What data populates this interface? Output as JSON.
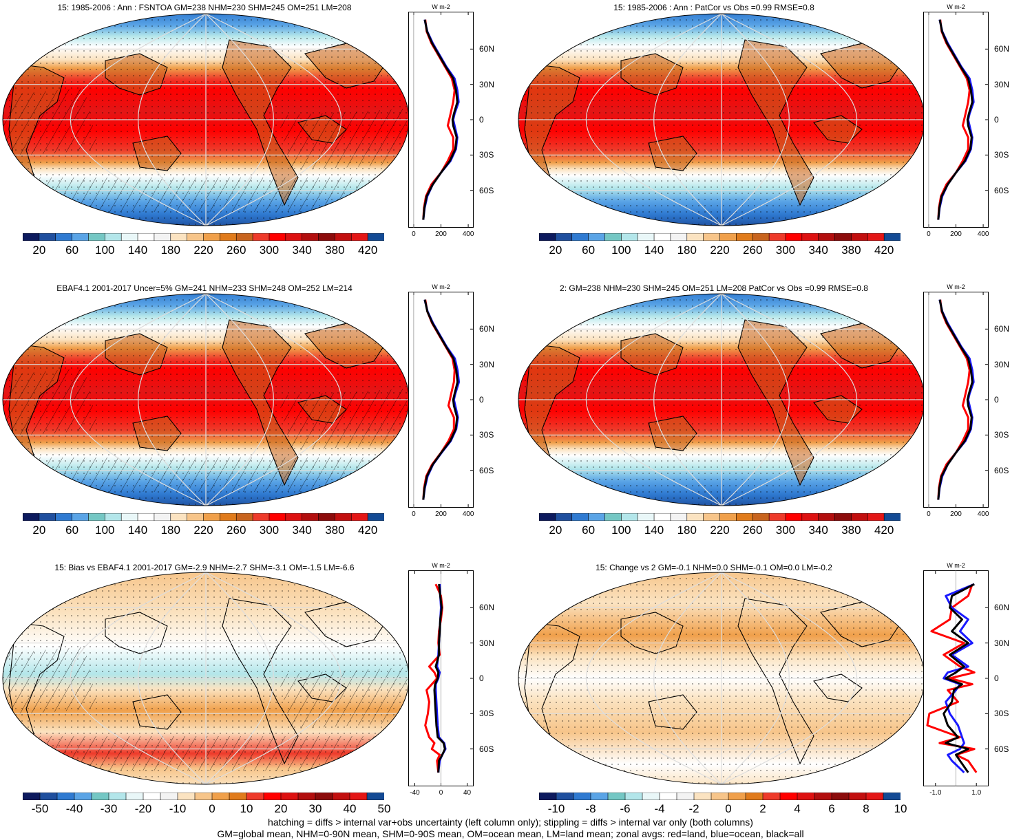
{
  "palettes": {
    "flux": [
      "#0d1a5e",
      "#1f4f9e",
      "#2f7ad1",
      "#5aa4e6",
      "#74c7c4",
      "#b3e6ea",
      "#e9f7f8",
      "#ffffff",
      "#f3f3f3",
      "#fbe3c1",
      "#f7c58a",
      "#f0a04b",
      "#e07b1c",
      "#c8641e",
      "#ee3a2a",
      "#ff0000",
      "#dd1111",
      "#b20e0e",
      "#8c0b0b",
      "#c20f0f",
      "#e31616",
      "#134a94"
    ],
    "diff": [
      "#0d1a5e",
      "#1f4f9e",
      "#2f7ad1",
      "#5aa4e6",
      "#74c7c4",
      "#b3e6ea",
      "#e9f7f8",
      "#ffffff",
      "#f3f3f3",
      "#fbe3c1",
      "#f7c58a",
      "#f0a04b",
      "#e07b1c",
      "#ee3a2a",
      "#ff0000",
      "#dd1111",
      "#b20e0e",
      "#8c0b0b",
      "#c20f0f",
      "#e31616",
      "#134a94"
    ]
  },
  "panels": [
    {
      "title": "15: 1985-2006 : Ann : FSNTOA GM=238 NHM=230 SHM=245 OM=251 LM=208",
      "map_kind": "flux",
      "hatch": true,
      "colorbar": {
        "palette": "flux",
        "labels": [
          "20",
          "60",
          "100",
          "140",
          "180",
          "220",
          "260",
          "300",
          "340",
          "380",
          "420"
        ]
      },
      "zonal": {
        "unit": "W m-2",
        "ylabels": [
          "60N",
          "30N",
          "0",
          "30S",
          "60S"
        ],
        "xticks": [
          "0",
          "200",
          "400"
        ],
        "xlim": [
          -40,
          440
        ],
        "lat": [
          85,
          75,
          65,
          55,
          45,
          35,
          25,
          15,
          5,
          0,
          -5,
          -15,
          -25,
          -35,
          -45,
          -55,
          -65,
          -75,
          -85
        ],
        "land": [
          85,
          95,
          130,
          180,
          230,
          280,
          300,
          290,
          270,
          260,
          250,
          290,
          290,
          250,
          200,
          130,
          90,
          75,
          70
        ],
        "ocean": [
          80,
          100,
          140,
          190,
          240,
          300,
          320,
          330,
          300,
          290,
          300,
          320,
          310,
          270,
          200,
          140,
          100,
          80,
          70
        ],
        "all": [
          82,
          98,
          135,
          185,
          235,
          290,
          310,
          320,
          295,
          285,
          290,
          315,
          305,
          265,
          200,
          140,
          95,
          78,
          70
        ]
      }
    },
    {
      "title": "15: 1985-2006 : Ann : PatCor vs Obs =0.99 RMSE=0.8",
      "map_kind": "flux",
      "hatch": false,
      "colorbar": {
        "palette": "flux",
        "labels": [
          "20",
          "60",
          "100",
          "140",
          "180",
          "220",
          "260",
          "300",
          "340",
          "380",
          "420"
        ]
      },
      "zonal": {
        "unit": "W m-2",
        "ylabels": [
          "60N",
          "30N",
          "0",
          "30S",
          "60S"
        ],
        "xticks": [
          "0",
          "200",
          "400"
        ],
        "xlim": [
          -40,
          440
        ],
        "lat": [
          85,
          75,
          65,
          55,
          45,
          35,
          25,
          15,
          5,
          0,
          -5,
          -15,
          -25,
          -35,
          -45,
          -55,
          -65,
          -75,
          -85
        ],
        "land": [
          85,
          95,
          130,
          180,
          230,
          280,
          300,
          290,
          270,
          260,
          250,
          290,
          290,
          250,
          200,
          130,
          90,
          75,
          70
        ],
        "ocean": [
          80,
          100,
          140,
          190,
          240,
          300,
          320,
          330,
          300,
          290,
          300,
          320,
          310,
          270,
          200,
          140,
          100,
          80,
          70
        ],
        "all": [
          82,
          98,
          135,
          185,
          235,
          290,
          310,
          320,
          295,
          285,
          290,
          315,
          305,
          265,
          200,
          140,
          95,
          78,
          70
        ]
      }
    },
    {
      "title": "EBAF4.1 2001-2017 Uncer=5% GM=241 NHM=233 SHM=248 OM=252 LM=214",
      "map_kind": "flux",
      "hatch": true,
      "colorbar": {
        "palette": "flux",
        "labels": [
          "20",
          "60",
          "100",
          "140",
          "180",
          "220",
          "260",
          "300",
          "340",
          "380",
          "420"
        ]
      },
      "zonal": {
        "unit": "W m-2",
        "ylabels": [
          "60N",
          "30N",
          "0",
          "30S",
          "60S"
        ],
        "xticks": [
          "0",
          "200",
          "400"
        ],
        "xlim": [
          -40,
          440
        ],
        "lat": [
          85,
          75,
          65,
          55,
          45,
          35,
          25,
          15,
          5,
          0,
          -5,
          -15,
          -25,
          -35,
          -45,
          -55,
          -65,
          -75,
          -85
        ],
        "land": [
          85,
          100,
          135,
          185,
          235,
          285,
          300,
          295,
          275,
          265,
          255,
          295,
          295,
          255,
          200,
          135,
          92,
          76,
          70
        ],
        "ocean": [
          80,
          102,
          142,
          192,
          242,
          302,
          322,
          332,
          305,
          295,
          305,
          325,
          312,
          272,
          205,
          142,
          102,
          82,
          70
        ],
        "all": [
          82,
          100,
          138,
          188,
          238,
          292,
          312,
          322,
          300,
          290,
          295,
          318,
          308,
          268,
          202,
          140,
          97,
          79,
          70
        ]
      }
    },
    {
      "title": "2: GM=238 NHM=230 SHM=245 OM=251 LM=208 PatCor vs Obs =0.99 RMSE=0.8",
      "map_kind": "flux",
      "hatch": false,
      "colorbar": {
        "palette": "flux",
        "labels": [
          "20",
          "60",
          "100",
          "140",
          "180",
          "220",
          "260",
          "300",
          "340",
          "380",
          "420"
        ]
      },
      "zonal": {
        "unit": "W m-2",
        "ylabels": [
          "60N",
          "30N",
          "0",
          "30S",
          "60S"
        ],
        "xticks": [
          "0",
          "200",
          "400"
        ],
        "xlim": [
          -40,
          440
        ],
        "lat": [
          85,
          75,
          65,
          55,
          45,
          35,
          25,
          15,
          5,
          0,
          -5,
          -15,
          -25,
          -35,
          -45,
          -55,
          -65,
          -75,
          -85
        ],
        "land": [
          85,
          95,
          130,
          180,
          230,
          280,
          300,
          290,
          270,
          260,
          250,
          290,
          290,
          250,
          200,
          130,
          90,
          75,
          70
        ],
        "ocean": [
          80,
          100,
          140,
          190,
          240,
          300,
          320,
          330,
          300,
          290,
          300,
          320,
          310,
          270,
          200,
          140,
          100,
          80,
          70
        ],
        "all": [
          82,
          98,
          135,
          185,
          235,
          290,
          310,
          320,
          295,
          285,
          290,
          315,
          305,
          265,
          200,
          140,
          95,
          78,
          70
        ]
      }
    },
    {
      "title": "15: Bias vs EBAF4.1 2001-2017 GM=-2.9 NHM=-2.7 SHM=-3.1 OM=-1.5 LM=-6.6",
      "map_kind": "bias",
      "hatch": true,
      "colorbar": {
        "palette": "diff",
        "labels": [
          "-50",
          "-40",
          "-30",
          "-20",
          "-10",
          "0",
          "10",
          "20",
          "30",
          "40",
          "50"
        ]
      },
      "zonal": {
        "unit": "W m-2",
        "ylabels": [
          "60N",
          "30N",
          "0",
          "30S",
          "60S"
        ],
        "xticks": [
          "-40",
          "0",
          "40"
        ],
        "xlim": [
          -50,
          50
        ],
        "lat": [
          80,
          70,
          60,
          50,
          40,
          30,
          20,
          10,
          5,
          0,
          -5,
          -10,
          -20,
          -30,
          -40,
          -50,
          -55,
          -60,
          -65,
          -70,
          -80
        ],
        "land": [
          -8,
          0,
          2,
          0,
          -3,
          -4,
          -2,
          -18,
          -10,
          -6,
          -14,
          -22,
          -18,
          -20,
          -24,
          -18,
          -10,
          -14,
          -2,
          -6,
          -4
        ],
        "ocean": [
          -2,
          -1,
          0,
          -1,
          -2,
          -3,
          -4,
          -6,
          -2,
          -4,
          -8,
          -8,
          -7,
          -6,
          -5,
          -3,
          5,
          7,
          2,
          -2,
          -4
        ],
        "all": [
          -3,
          -1,
          1,
          -1,
          -2,
          -3,
          -3,
          -8,
          -4,
          -5,
          -9,
          -10,
          -9,
          -8,
          -7,
          -5,
          4,
          6,
          2,
          -3,
          -4
        ]
      }
    },
    {
      "title": "15: Change vs 2 GM=-0.1 NHM=0.0 SHM=-0.1 OM=0.0 LM=-0.2",
      "map_kind": "change",
      "hatch": false,
      "colorbar": {
        "palette": "diff",
        "labels": [
          "-10",
          "-8",
          "-6",
          "-4",
          "-2",
          "0",
          "2",
          "4",
          "6",
          "8",
          "10"
        ]
      },
      "zonal": {
        "unit": "W m-2",
        "ylabels": [
          "60N",
          "30N",
          "0",
          "30S",
          "60S"
        ],
        "xticks": [
          "-1.0",
          "1.0"
        ],
        "xlim": [
          -1.6,
          1.6
        ],
        "lat": [
          80,
          70,
          60,
          50,
          40,
          30,
          20,
          10,
          5,
          0,
          -5,
          -10,
          -20,
          -30,
          -40,
          -50,
          -55,
          -60,
          -65,
          -70,
          -80
        ],
        "land": [
          0.8,
          0.6,
          -0.2,
          -0.3,
          -1.2,
          0.4,
          -0.6,
          0.2,
          0.9,
          -0.3,
          0.8,
          -0.4,
          0.1,
          -1.3,
          -1.4,
          0.2,
          -0.8,
          0.9,
          0.0,
          0.6,
          1.0
        ],
        "ocean": [
          0.9,
          -0.5,
          -0.2,
          0.6,
          0.2,
          0.8,
          -0.2,
          0.6,
          -0.4,
          -0.6,
          0.2,
          0.0,
          -0.5,
          -0.3,
          0.1,
          0.3,
          0.4,
          0.2,
          -0.4,
          -0.2,
          0.4
        ],
        "all": [
          0.9,
          -0.2,
          -0.3,
          0.3,
          -0.2,
          0.6,
          -0.3,
          0.4,
          0.0,
          -0.5,
          0.3,
          -0.1,
          -0.2,
          -0.6,
          -0.4,
          0.1,
          -0.5,
          0.6,
          0.0,
          0.2,
          0.6
        ]
      }
    }
  ],
  "footer": {
    "line1": "hatching = diffs > internal var+obs uncertainty (left column only); stippling = diffs > internal var only (both columns)",
    "line2": "GM=global mean, NHM=0-90N mean, SHM=0-90S mean, OM=ocean mean, LM=land mean; zonal avgs: red=land, blue=ocean, black=all"
  }
}
